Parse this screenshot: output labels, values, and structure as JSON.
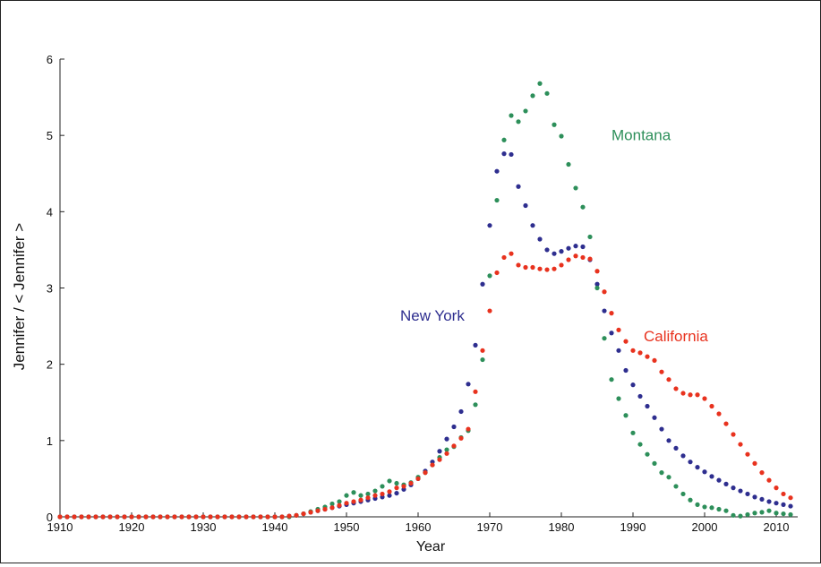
{
  "chart_data": {
    "type": "scatter",
    "title": "",
    "xlabel": "Year",
    "ylabel": "Jennifer / < Jennifer >",
    "xlim": [
      1910,
      2013
    ],
    "ylim": [
      0,
      6
    ],
    "xticks": [
      1910,
      1920,
      1930,
      1940,
      1950,
      1960,
      1970,
      1980,
      1990,
      2000,
      2010
    ],
    "yticks": [
      0,
      1,
      2,
      3,
      4,
      5,
      6
    ],
    "grid": false,
    "legend": "none",
    "series": [
      {
        "name": "New York",
        "color": "#2e2e8f",
        "x": [
          1910,
          1911,
          1912,
          1913,
          1914,
          1915,
          1916,
          1917,
          1918,
          1919,
          1920,
          1921,
          1922,
          1923,
          1924,
          1925,
          1926,
          1927,
          1928,
          1929,
          1930,
          1931,
          1932,
          1933,
          1934,
          1935,
          1936,
          1937,
          1938,
          1939,
          1940,
          1941,
          1942,
          1943,
          1944,
          1945,
          1946,
          1947,
          1948,
          1949,
          1950,
          1951,
          1952,
          1953,
          1954,
          1955,
          1956,
          1957,
          1958,
          1959,
          1960,
          1961,
          1962,
          1963,
          1964,
          1965,
          1966,
          1967,
          1968,
          1969,
          1970,
          1971,
          1972,
          1973,
          1974,
          1975,
          1976,
          1977,
          1978,
          1979,
          1980,
          1981,
          1982,
          1983,
          1984,
          1985,
          1986,
          1987,
          1988,
          1989,
          1990,
          1991,
          1992,
          1993,
          1994,
          1995,
          1996,
          1997,
          1998,
          1999,
          2000,
          2001,
          2002,
          2003,
          2004,
          2005,
          2006,
          2007,
          2008,
          2009,
          2010,
          2011,
          2012
        ],
        "y": [
          0,
          0,
          0,
          0,
          0,
          0,
          0,
          0,
          0,
          0,
          0,
          0,
          0,
          0,
          0,
          0,
          0,
          0,
          0,
          0,
          0,
          0,
          0,
          0,
          0,
          0,
          0,
          0,
          0,
          0,
          0,
          0,
          0.01,
          0.02,
          0.04,
          0.06,
          0.08,
          0.1,
          0.12,
          0.14,
          0.16,
          0.18,
          0.2,
          0.22,
          0.24,
          0.26,
          0.28,
          0.31,
          0.36,
          0.42,
          0.5,
          0.6,
          0.72,
          0.86,
          1.02,
          1.18,
          1.38,
          1.74,
          2.25,
          3.05,
          3.82,
          4.53,
          4.76,
          4.75,
          4.33,
          4.08,
          3.82,
          3.64,
          3.5,
          3.45,
          3.48,
          3.52,
          3.55,
          3.54,
          3.37,
          3.05,
          2.7,
          2.41,
          2.18,
          1.92,
          1.73,
          1.58,
          1.45,
          1.3,
          1.15,
          1.0,
          0.9,
          0.8,
          0.72,
          0.65,
          0.59,
          0.53,
          0.48,
          0.43,
          0.38,
          0.34,
          0.3,
          0.26,
          0.23,
          0.2,
          0.18,
          0.16,
          0.14
        ]
      },
      {
        "name": "Montana",
        "color": "#2d8f5a",
        "x": [
          1910,
          1911,
          1912,
          1913,
          1914,
          1915,
          1916,
          1917,
          1918,
          1919,
          1920,
          1921,
          1922,
          1923,
          1924,
          1925,
          1926,
          1927,
          1928,
          1929,
          1930,
          1931,
          1932,
          1933,
          1934,
          1935,
          1936,
          1937,
          1938,
          1939,
          1940,
          1941,
          1942,
          1943,
          1944,
          1945,
          1946,
          1947,
          1948,
          1949,
          1950,
          1951,
          1952,
          1953,
          1954,
          1955,
          1956,
          1957,
          1958,
          1959,
          1960,
          1961,
          1962,
          1963,
          1964,
          1965,
          1966,
          1967,
          1968,
          1969,
          1970,
          1971,
          1972,
          1973,
          1974,
          1975,
          1976,
          1977,
          1978,
          1979,
          1980,
          1981,
          1982,
          1983,
          1984,
          1985,
          1986,
          1987,
          1988,
          1989,
          1990,
          1991,
          1992,
          1993,
          1994,
          1995,
          1996,
          1997,
          1998,
          1999,
          2000,
          2001,
          2002,
          2003,
          2004,
          2005,
          2006,
          2007,
          2008,
          2009,
          2010,
          2011,
          2012
        ],
        "y": [
          0,
          0,
          0,
          0,
          0,
          0,
          0,
          0,
          0,
          0,
          0,
          0,
          0,
          0,
          0,
          0,
          0,
          0,
          0,
          0,
          0,
          0,
          0,
          0,
          0,
          0,
          0,
          0,
          0,
          0,
          0,
          0,
          0,
          0.02,
          0.04,
          0.07,
          0.1,
          0.13,
          0.17,
          0.2,
          0.28,
          0.32,
          0.28,
          0.3,
          0.34,
          0.4,
          0.47,
          0.44,
          0.42,
          0.45,
          0.52,
          0.58,
          0.68,
          0.78,
          0.88,
          0.92,
          1.04,
          1.13,
          1.47,
          2.06,
          3.16,
          4.15,
          4.94,
          5.26,
          5.18,
          5.32,
          5.52,
          5.68,
          5.55,
          5.14,
          4.99,
          4.62,
          4.31,
          4.06,
          3.67,
          3.0,
          2.34,
          1.8,
          1.55,
          1.33,
          1.1,
          0.95,
          0.82,
          0.7,
          0.58,
          0.52,
          0.4,
          0.3,
          0.22,
          0.16,
          0.13,
          0.12,
          0.1,
          0.08,
          0.02,
          0.01,
          0.03,
          0.05,
          0.06,
          0.08,
          0.05,
          0.04,
          0.03
        ]
      },
      {
        "name": "California",
        "color": "#e8321e",
        "x": [
          1910,
          1911,
          1912,
          1913,
          1914,
          1915,
          1916,
          1917,
          1918,
          1919,
          1920,
          1921,
          1922,
          1923,
          1924,
          1925,
          1926,
          1927,
          1928,
          1929,
          1930,
          1931,
          1932,
          1933,
          1934,
          1935,
          1936,
          1937,
          1938,
          1939,
          1940,
          1941,
          1942,
          1943,
          1944,
          1945,
          1946,
          1947,
          1948,
          1949,
          1950,
          1951,
          1952,
          1953,
          1954,
          1955,
          1956,
          1957,
          1958,
          1959,
          1960,
          1961,
          1962,
          1963,
          1964,
          1965,
          1966,
          1967,
          1968,
          1969,
          1970,
          1971,
          1972,
          1973,
          1974,
          1975,
          1976,
          1977,
          1978,
          1979,
          1980,
          1981,
          1982,
          1983,
          1984,
          1985,
          1986,
          1987,
          1988,
          1989,
          1990,
          1991,
          1992,
          1993,
          1994,
          1995,
          1996,
          1997,
          1998,
          1999,
          2000,
          2001,
          2002,
          2003,
          2004,
          2005,
          2006,
          2007,
          2008,
          2009,
          2010,
          2011,
          2012
        ],
        "y": [
          0,
          0,
          0,
          0,
          0,
          0,
          0,
          0,
          0,
          0,
          0,
          0,
          0,
          0,
          0,
          0,
          0,
          0,
          0,
          0,
          0,
          0,
          0,
          0,
          0,
          0,
          0,
          0,
          0,
          0,
          0,
          0,
          0.01,
          0.02,
          0.04,
          0.06,
          0.08,
          0.1,
          0.12,
          0.15,
          0.18,
          0.2,
          0.22,
          0.25,
          0.28,
          0.3,
          0.33,
          0.38,
          0.4,
          0.44,
          0.5,
          0.58,
          0.68,
          0.75,
          0.83,
          0.93,
          1.03,
          1.15,
          1.64,
          2.18,
          2.7,
          3.2,
          3.4,
          3.45,
          3.3,
          3.27,
          3.27,
          3.25,
          3.24,
          3.25,
          3.3,
          3.37,
          3.42,
          3.4,
          3.38,
          3.22,
          2.95,
          2.67,
          2.45,
          2.3,
          2.18,
          2.15,
          2.1,
          2.05,
          1.9,
          1.8,
          1.68,
          1.62,
          1.6,
          1.6,
          1.55,
          1.45,
          1.35,
          1.22,
          1.08,
          0.95,
          0.82,
          0.7,
          0.58,
          0.48,
          0.38,
          0.3,
          0.25
        ]
      }
    ],
    "annotations": [
      {
        "text": "Montana",
        "x": 1987,
        "y": 4.94,
        "color": "#2d8f5a"
      },
      {
        "text": "New York",
        "x": 1957.5,
        "y": 2.57,
        "color": "#2e2e8f"
      },
      {
        "text": "California",
        "x": 1991.5,
        "y": 2.3,
        "color": "#e8321e"
      }
    ]
  }
}
